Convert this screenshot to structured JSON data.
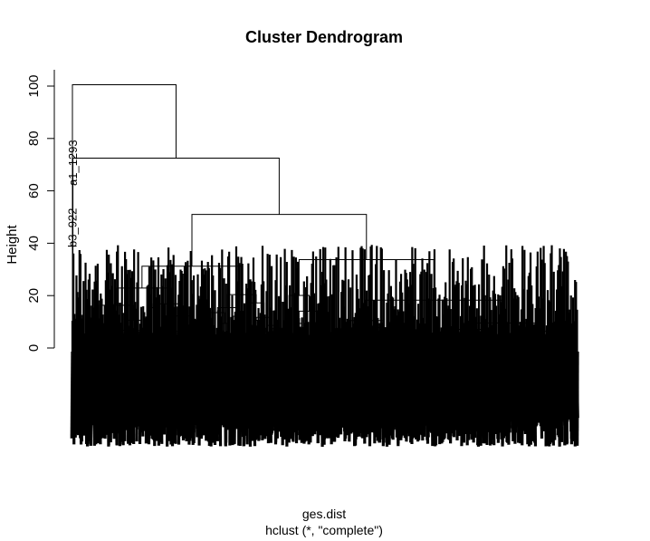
{
  "chart_data": {
    "type": "dendrogram",
    "title": "Cluster Dendrogram",
    "xlabel": "ges.dist",
    "sub": "hclust (*, \"complete\")",
    "ylabel": "Height",
    "ylim": [
      0,
      105
    ],
    "yticks": [
      0,
      20,
      40,
      60,
      80,
      100
    ],
    "grid": false,
    "legend": "none",
    "visible_leaf_labels": [
      "a1_1293",
      "b3_922"
    ],
    "major_merge_heights": [
      100.5,
      72.5,
      51,
      42,
      41,
      38.5,
      37,
      33.5,
      30,
      27.5,
      25.5
    ]
  }
}
